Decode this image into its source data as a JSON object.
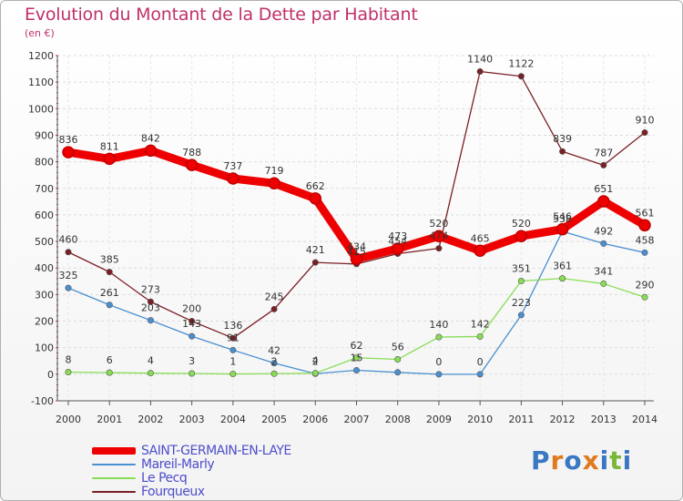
{
  "title": "Evolution du Montant de la Dette par Habitant",
  "subtitle": "(en €)",
  "logo": {
    "text": "Proxiti",
    "colors": [
      "#3a78c2",
      "#e07a1f",
      "#3a78c2",
      "#e07a1f",
      "#3a78c2",
      "#7ab83a",
      "#3a78c2"
    ]
  },
  "chart_data": {
    "type": "line",
    "x": [
      "2000",
      "2001",
      "2002",
      "2003",
      "2004",
      "2005",
      "2006",
      "2007",
      "2008",
      "2009",
      "2010",
      "2011",
      "2012",
      "2013",
      "2014"
    ],
    "ylim": [
      -100,
      1200
    ],
    "yticks": [
      -100,
      0,
      100,
      200,
      300,
      400,
      500,
      600,
      700,
      800,
      900,
      1000,
      1100,
      1200
    ],
    "grid": true,
    "legend_position": "bottom-left",
    "series": [
      {
        "name": "SAINT-GERMAIN-EN-LAYE",
        "color": "#ee0000",
        "values": [
          836,
          811,
          842,
          788,
          737,
          719,
          662,
          434,
          473,
          520,
          465,
          520,
          546,
          651,
          561
        ],
        "labels": [
          "836",
          "811",
          "842",
          "788",
          "737",
          "719",
          "662",
          "434",
          "473",
          "520",
          "465",
          "520",
          "546",
          "651",
          "561"
        ]
      },
      {
        "name": "Mareil-Marly",
        "color": "#4a8fd0",
        "values": [
          325,
          261,
          203,
          143,
          91,
          42,
          2,
          15,
          7,
          0,
          0,
          223,
          538,
          492,
          458
        ],
        "labels": [
          "325",
          "261",
          "203",
          "143",
          "91",
          "42",
          "2",
          "15",
          "",
          "0",
          "0",
          "223",
          "538",
          "492",
          "458"
        ]
      },
      {
        "name": "Le Pecq",
        "color": "#88dd55",
        "values": [
          8,
          6,
          4,
          3,
          1,
          2,
          4,
          62,
          56,
          140,
          142,
          351,
          361,
          341,
          290
        ],
        "labels": [
          "8",
          "6",
          "4",
          "3",
          "1",
          "2",
          "4",
          "62",
          "56",
          "140",
          "142",
          "351",
          "361",
          "341",
          "290"
        ]
      },
      {
        "name": "Fourqueux",
        "color": "#7a1f24",
        "values": [
          460,
          385,
          273,
          200,
          136,
          245,
          421,
          415,
          454,
          474,
          1140,
          1122,
          839,
          787,
          910
        ],
        "labels": [
          "460",
          "385",
          "273",
          "200",
          "136",
          "245",
          "421",
          "415",
          "454",
          "474",
          "1140",
          "1122",
          "839",
          "787",
          "910"
        ]
      }
    ]
  }
}
